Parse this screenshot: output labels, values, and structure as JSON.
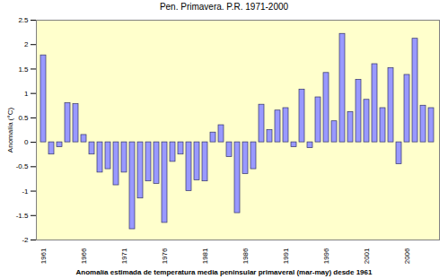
{
  "chart_data": {
    "type": "bar",
    "title": "Pen. Primavera. P.R. 1971-2000",
    "caption": "Anomalía estimada de temperatura media peninsular primaveral (mar-may) desde 1961",
    "y_label": "Anomalía (°C)",
    "categories": [
      "1961",
      null,
      null,
      null,
      null,
      "1966",
      null,
      null,
      null,
      null,
      "1971",
      null,
      null,
      null,
      null,
      "1976",
      null,
      null,
      null,
      null,
      "1981",
      null,
      null,
      null,
      null,
      "1986",
      null,
      null,
      null,
      null,
      "1991",
      null,
      null,
      null,
      null,
      "1996",
      null,
      null,
      null,
      null,
      "2001",
      null,
      null,
      null,
      null,
      "2006",
      null,
      null,
      null
    ],
    "values": [
      1.78,
      -0.25,
      -0.1,
      0.8,
      0.78,
      0.15,
      -0.25,
      -0.62,
      -0.55,
      -0.88,
      -0.62,
      -1.78,
      -1.15,
      -0.8,
      -0.85,
      -1.65,
      -0.4,
      -0.25,
      -1.0,
      -0.78,
      -0.8,
      0.2,
      0.35,
      -0.3,
      -1.45,
      -0.65,
      -0.55,
      0.77,
      0.25,
      0.65,
      0.7,
      -0.1,
      1.08,
      -0.12,
      0.92,
      1.42,
      0.43,
      2.22,
      0.62,
      1.28,
      0.87,
      1.6,
      0.7,
      1.52,
      -0.45,
      1.38,
      2.12,
      0.75,
      0.7
    ],
    "color": "#9999ff",
    "ylim": [
      -2,
      2.5
    ],
    "yticks": [
      -2,
      -1.5,
      -1,
      -0.5,
      0,
      0.5,
      1,
      1.5,
      2,
      2.5
    ],
    "grid": false
  }
}
